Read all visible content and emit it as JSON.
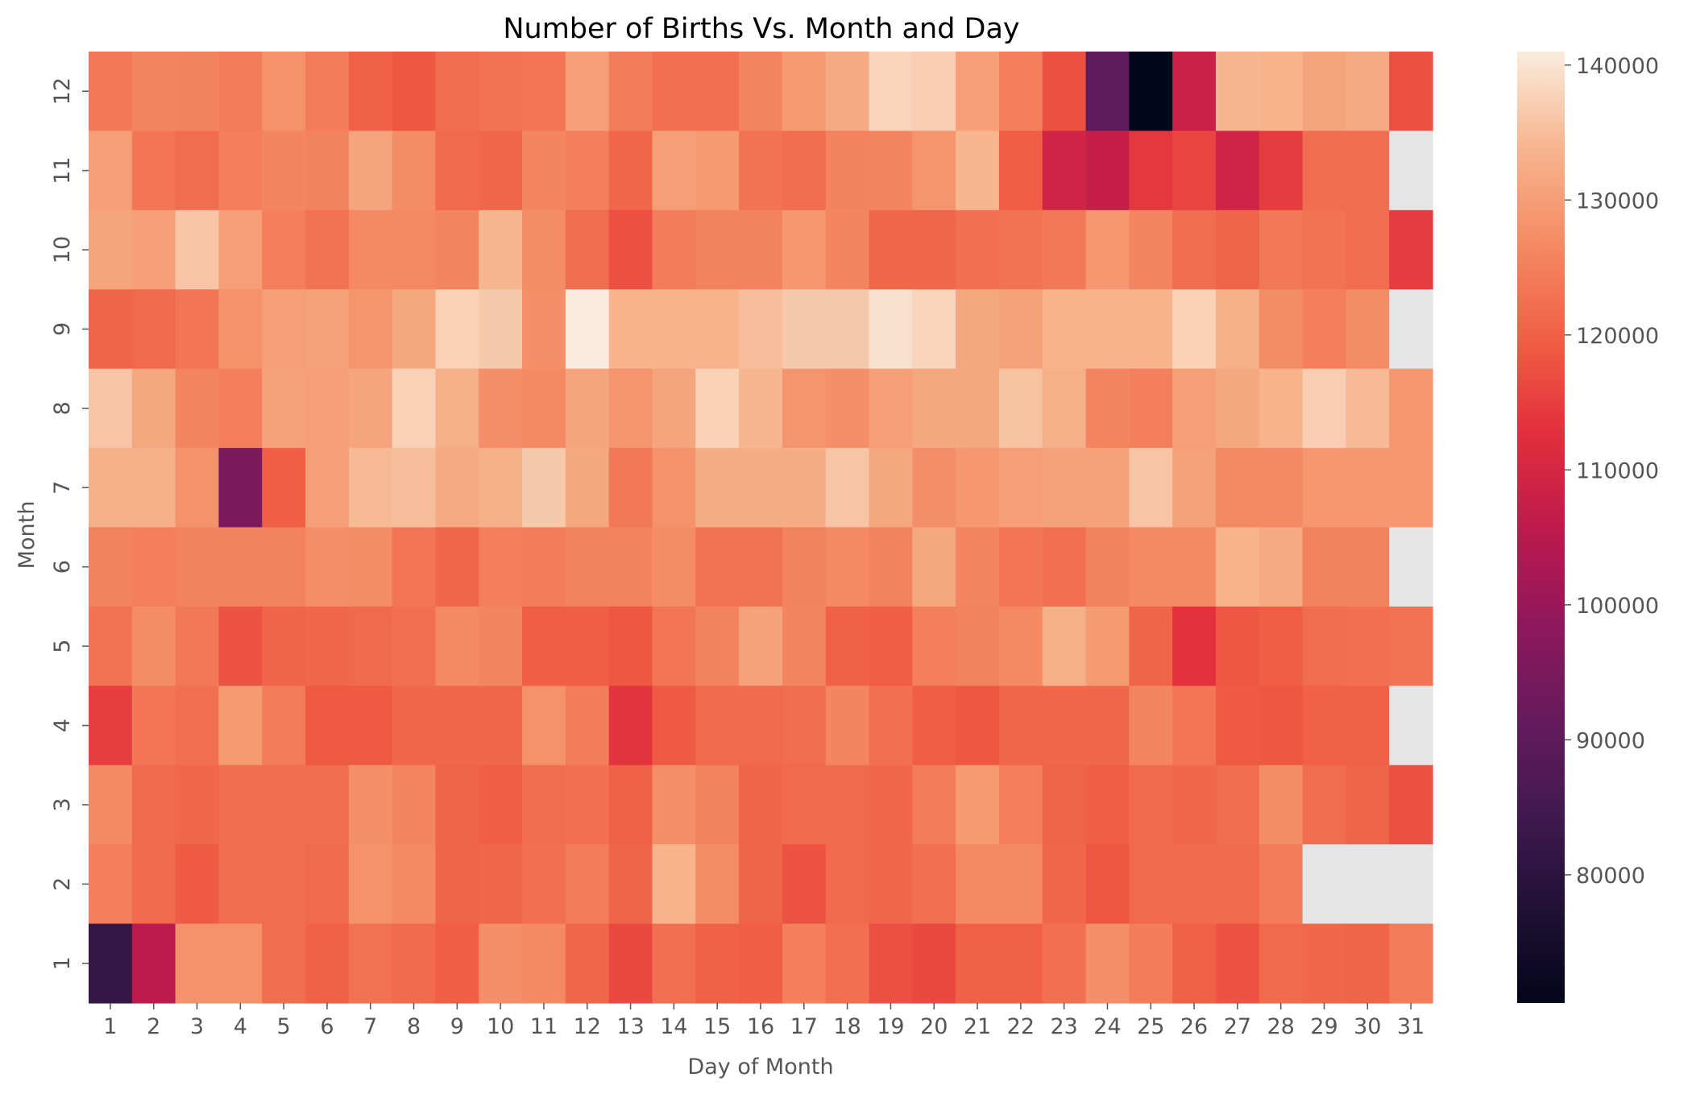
{
  "chart_data": {
    "type": "heatmap",
    "title": "Number of Births Vs. Month and Day",
    "xlabel": "Day of Month",
    "ylabel": "Month",
    "x": [
      1,
      2,
      3,
      4,
      5,
      6,
      7,
      8,
      9,
      10,
      11,
      12,
      13,
      14,
      15,
      16,
      17,
      18,
      19,
      20,
      21,
      22,
      23,
      24,
      25,
      26,
      27,
      28,
      29,
      30,
      31
    ],
    "y": [
      12,
      11,
      10,
      9,
      8,
      7,
      6,
      5,
      4,
      3,
      2,
      1
    ],
    "values": [
      [
        124000,
        126000,
        125500,
        124500,
        128000,
        124500,
        120000,
        118500,
        122000,
        123000,
        123500,
        130000,
        124500,
        122500,
        122500,
        126000,
        129500,
        132000,
        138000,
        137000,
        130000,
        125000,
        117500,
        90000,
        70500,
        108000,
        134000,
        133500,
        131000,
        132000,
        117500
      ],
      [
        130000,
        123500,
        122000,
        125000,
        126000,
        125500,
        131000,
        127000,
        121500,
        121000,
        126000,
        125000,
        121000,
        130000,
        129500,
        123000,
        122000,
        125500,
        126000,
        128500,
        134000,
        119500,
        109000,
        107000,
        114000,
        116000,
        109000,
        114500,
        122000,
        122000,
        null
      ],
      [
        131000,
        130000,
        136000,
        130000,
        125000,
        123000,
        126500,
        126500,
        126000,
        134000,
        127000,
        122000,
        117500,
        124500,
        125500,
        125500,
        129000,
        126000,
        121000,
        121000,
        122500,
        123000,
        124000,
        129000,
        126000,
        122000,
        120500,
        124000,
        123000,
        122000,
        114500
      ],
      [
        120500,
        121500,
        123500,
        128000,
        130000,
        130500,
        128500,
        131500,
        137500,
        136500,
        127500,
        141000,
        133500,
        133500,
        133500,
        135000,
        136500,
        136500,
        139500,
        138000,
        131500,
        130500,
        133500,
        133500,
        133500,
        137500,
        133000,
        127000,
        125000,
        127000,
        null
      ],
      [
        136000,
        131500,
        126000,
        125000,
        130500,
        130000,
        131000,
        137500,
        133000,
        127500,
        126500,
        131000,
        128500,
        131000,
        137500,
        134000,
        128500,
        127500,
        130000,
        131500,
        131500,
        135500,
        133000,
        126000,
        125000,
        130000,
        131500,
        133500,
        137000,
        134500,
        129000
      ],
      [
        133000,
        133000,
        128000,
        95000,
        119500,
        130000,
        134500,
        135000,
        132000,
        133000,
        136500,
        131500,
        124000,
        128000,
        132500,
        132500,
        132500,
        136000,
        131500,
        127500,
        129000,
        130000,
        130500,
        130500,
        136000,
        130500,
        126500,
        126500,
        129000,
        129000,
        129000
      ],
      [
        125500,
        125000,
        125500,
        125500,
        125500,
        127500,
        127000,
        123500,
        121000,
        125000,
        124500,
        125500,
        125500,
        127000,
        123000,
        123000,
        125500,
        126500,
        125500,
        131500,
        126000,
        123500,
        122500,
        125500,
        126500,
        126500,
        133500,
        132000,
        125500,
        125500,
        null
      ],
      [
        123000,
        127000,
        124000,
        118000,
        120500,
        121000,
        121500,
        122500,
        126500,
        126000,
        119500,
        119500,
        118500,
        123500,
        125500,
        130500,
        126000,
        120000,
        119500,
        125000,
        125500,
        126500,
        133000,
        129500,
        120500,
        113000,
        118500,
        119500,
        122000,
        122500,
        123000
      ],
      [
        115000,
        123500,
        122500,
        129500,
        124500,
        119000,
        119000,
        121000,
        121000,
        121000,
        128000,
        124500,
        113500,
        119000,
        121500,
        121500,
        122000,
        126000,
        122500,
        119500,
        118500,
        121000,
        121000,
        121000,
        126000,
        123500,
        119000,
        118500,
        120000,
        120000,
        null
      ],
      [
        126500,
        121500,
        121000,
        122000,
        122000,
        122000,
        127500,
        126000,
        120500,
        119500,
        122000,
        122500,
        120000,
        127500,
        125500,
        120500,
        121500,
        121500,
        121000,
        124500,
        129500,
        125000,
        120500,
        119500,
        121500,
        121000,
        122000,
        127000,
        122000,
        120500,
        117500
      ],
      [
        125000,
        121500,
        119000,
        122000,
        122000,
        121500,
        128000,
        126500,
        120500,
        121000,
        122500,
        124500,
        120500,
        133500,
        127000,
        120500,
        118000,
        121500,
        121000,
        122500,
        126500,
        126500,
        121000,
        118500,
        121500,
        121500,
        121500,
        124500,
        null,
        null,
        null
      ],
      [
        82000,
        105500,
        128000,
        128000,
        122000,
        120000,
        123000,
        121500,
        119500,
        127500,
        126500,
        121000,
        116500,
        122500,
        120000,
        119500,
        125000,
        122500,
        117500,
        116500,
        120000,
        120000,
        122500,
        127500,
        124500,
        120000,
        118000,
        121500,
        121000,
        120500,
        124500
      ]
    ],
    "vmin": 70500,
    "vmax": 141000,
    "missing_color": "#e5e5e5",
    "colormap": "rocket",
    "colorbar_ticks": [
      80000,
      90000,
      100000,
      110000,
      120000,
      130000,
      140000
    ],
    "colorbar_tick_labels": [
      "80000",
      "90000",
      "100000",
      "110000",
      "120000",
      "130000",
      "140000"
    ]
  }
}
